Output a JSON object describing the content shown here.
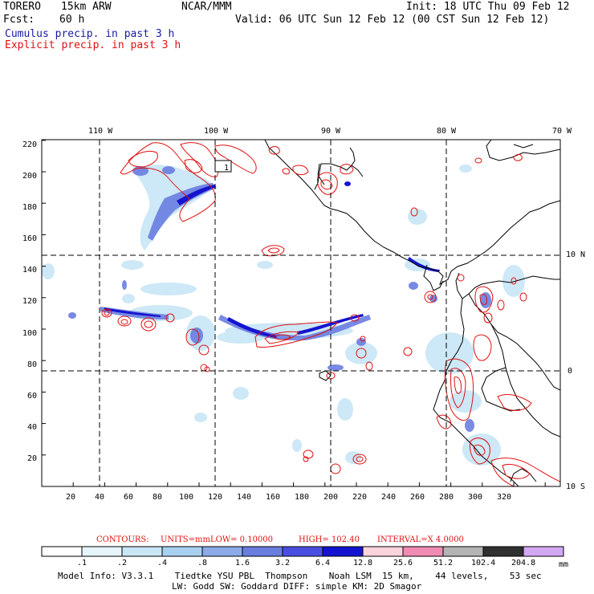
{
  "header": {
    "model": "TORERO",
    "resolution": "15km ARW",
    "org": "NCAR/MMM",
    "init": "Init: 18 UTC Thu 09 Feb 12",
    "fcst_label": "Fcst:",
    "fcst_value": "60 h",
    "valid": "Valid: 06 UTC Sun 12 Feb 12 (00 CST Sun 12 Feb 12)",
    "legend_cumulus": "Cumulus precip. in past 3 h",
    "legend_explicit": "Explicit precip. in past 3 h"
  },
  "axes": {
    "top_lon": [
      "110 W",
      "100 W",
      "90 W",
      "80 W",
      "70 W"
    ],
    "right_lat": [
      "10 N",
      "0",
      "10 S"
    ],
    "left_grid": [
      "220",
      "200",
      "180",
      "160",
      "140",
      "120",
      "100",
      "80",
      "60",
      "40",
      "20"
    ],
    "bottom_grid": [
      "20",
      "40",
      "60",
      "80",
      "100",
      "120",
      "140",
      "160",
      "180",
      "200",
      "220",
      "240",
      "260",
      "280",
      "300",
      "320"
    ]
  },
  "box_label": "1",
  "contours": {
    "title": "CONTOURS:",
    "units": "UNITS=mm",
    "low": "LOW= 0.10000",
    "high": "HIGH= 102.40",
    "interval": "INTERVAL=X 4.0000"
  },
  "colorbar": {
    "labels": [
      ".1",
      ".2",
      ".4",
      ".8",
      "1.6",
      "3.2",
      "6.4",
      "12.8",
      "25.6",
      "51.2",
      "102.4",
      "204.8"
    ],
    "colors": [
      "#ffffff",
      "#e6f4fb",
      "#c8e6f6",
      "#a8d0f0",
      "#8caae8",
      "#6a7ee0",
      "#4a4ee0",
      "#1414d0",
      "#fcd4dc",
      "#f08cb4",
      "#b4b4b4",
      "#303030",
      "#d2a8f2"
    ],
    "units": "mm"
  },
  "footer": {
    "line1": "Model Info: V3.3.1    Tiedtke YSU PBL  Thompson    Noah LSM  15 km,    44 levels,    53 sec",
    "line2": "LW: Godd SW: Goddard DIFF: simple KM: 2D Smagor"
  }
}
